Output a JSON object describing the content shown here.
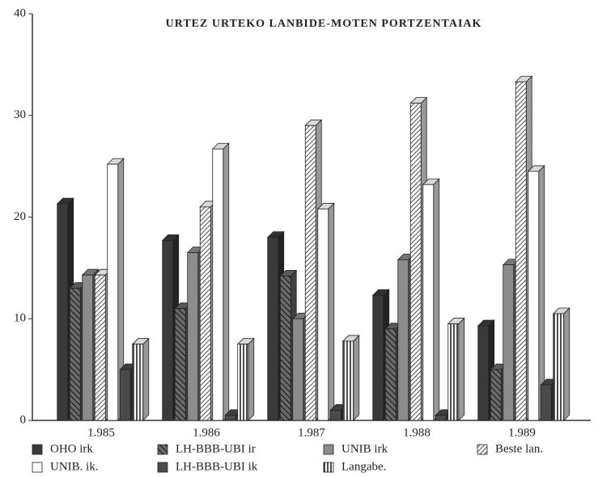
{
  "chart_data": {
    "type": "bar3d",
    "title": "URTEZ URTEKO LANBIDE-MOTEN PORTZENTAIAK",
    "categories": [
      "1.985",
      "1.986",
      "1.987",
      "1.988",
      "1.989"
    ],
    "series": [
      {
        "name": "OHO irk",
        "color": "#3a3a3a",
        "hatch": "none",
        "values": [
          21.3,
          17.7,
          18,
          12.3,
          9.3
        ]
      },
      {
        "name": "LH-BBB-UBI ir",
        "color": "#6a6a6a",
        "hatch": "back-diagonal",
        "values": [
          13,
          11,
          14.2,
          9,
          5
        ]
      },
      {
        "name": "UNIB irk",
        "color": "#8c8c8c",
        "hatch": "none",
        "values": [
          14.3,
          16.5,
          10,
          15.8,
          15.3
        ]
      },
      {
        "name": "Beste lan.",
        "color": "#ffffff",
        "hatch": "diagonal",
        "values": [
          14.3,
          21,
          29,
          31.2,
          33.3
        ]
      },
      {
        "name": "UNIB. ik.",
        "color": "#ffffff",
        "hatch": "none",
        "values": [
          25.2,
          26.7,
          20.8,
          23.2,
          24.5
        ]
      },
      {
        "name": "LH-BBB-UBI ik",
        "color": "#4a4a4a",
        "hatch": "none",
        "values": [
          5,
          0.5,
          1,
          0.5,
          3.5
        ]
      },
      {
        "name": "Langabe.",
        "color": "#ffffff",
        "hatch": "vertical",
        "values": [
          7.5,
          7.5,
          7.8,
          9.5,
          10.5
        ]
      }
    ],
    "ylim": [
      0,
      40
    ],
    "yticks": [
      0,
      10,
      20,
      30,
      40
    ]
  }
}
